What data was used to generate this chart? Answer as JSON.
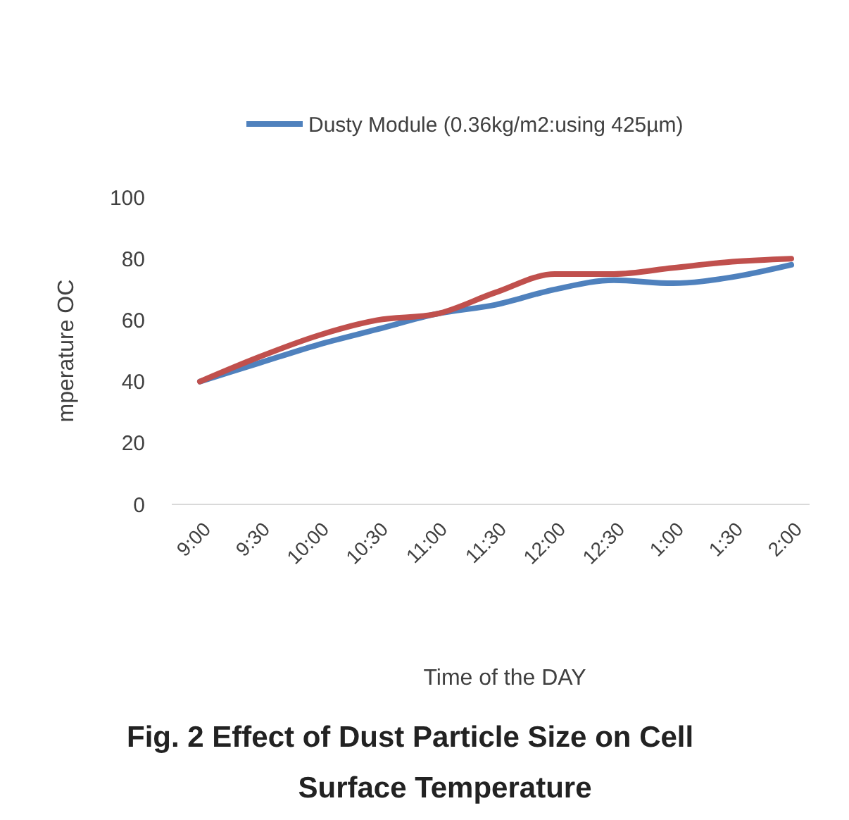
{
  "chart_data": {
    "type": "line",
    "title": "Fig. 2 Effect of Dust Particle Size on Cell Surface Temperature",
    "xlabel": "Time of the DAY",
    "ylabel": "mperature OC",
    "categories": [
      "9:00",
      "9:30",
      "10:00",
      "10:30",
      "11:00",
      "11:30",
      "12:00",
      "12:30",
      "1:00",
      "1:30",
      "2:00"
    ],
    "series": [
      {
        "name": "Dusty Module (0.36kg/m2:using 425µm)",
        "color": "#4f81bd",
        "values": [
          40,
          46,
          52,
          57,
          62,
          65,
          70,
          73,
          72,
          74,
          78
        ]
      },
      {
        "color": "#c0504d",
        "values": [
          40,
          48,
          55,
          60,
          62,
          69,
          75,
          75,
          77,
          79,
          80
        ]
      }
    ],
    "ylim": [
      0,
      100
    ],
    "yticks": [
      0,
      20,
      40,
      60,
      80,
      100
    ],
    "grid": false,
    "legend": "top",
    "marker": "none",
    "line_style": "solid"
  }
}
